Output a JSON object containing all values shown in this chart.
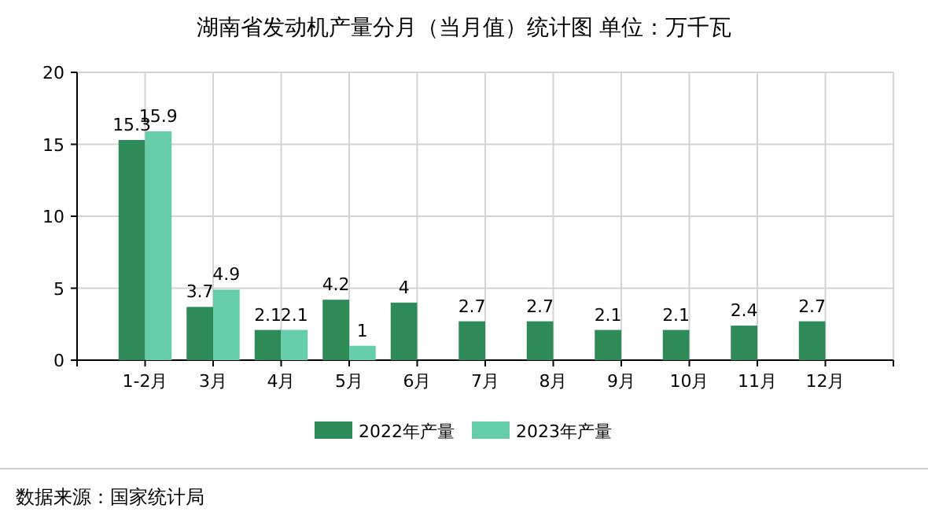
{
  "chart_data": {
    "type": "bar",
    "title": "湖南省发动机产量分月（当月值）统计图 单位：万千瓦",
    "categories": [
      "1-2月",
      "3月",
      "4月",
      "5月",
      "6月",
      "7月",
      "8月",
      "9月",
      "10月",
      "11月",
      "12月"
    ],
    "series": [
      {
        "name": "2022年产量",
        "color": "#2e8b57",
        "values": [
          15.3,
          3.7,
          2.1,
          4.2,
          4,
          2.7,
          2.7,
          2.1,
          2.1,
          2.4,
          2.7
        ]
      },
      {
        "name": "2023年产量",
        "color": "#66cdaa",
        "values": [
          15.9,
          4.9,
          2.1,
          1,
          null,
          null,
          null,
          null,
          null,
          null,
          null
        ]
      }
    ],
    "ylim": [
      0,
      20
    ],
    "yticks": [
      0,
      5,
      10,
      15,
      20
    ],
    "grid": true,
    "legend": "bottom",
    "data_labels": true,
    "annotations": [
      "数据来源：国家统计局"
    ]
  }
}
